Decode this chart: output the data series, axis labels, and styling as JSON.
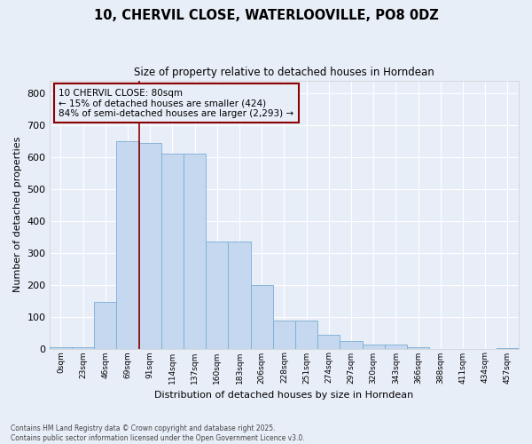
{
  "title": "10, CHERVIL CLOSE, WATERLOOVILLE, PO8 0DZ",
  "subtitle": "Size of property relative to detached houses in Horndean",
  "xlabel": "Distribution of detached houses by size in Horndean",
  "ylabel": "Number of detached properties",
  "footer_line1": "Contains HM Land Registry data © Crown copyright and database right 2025.",
  "footer_line2": "Contains public sector information licensed under the Open Government Licence v3.0.",
  "bin_labels": [
    "0sqm",
    "23sqm",
    "46sqm",
    "69sqm",
    "91sqm",
    "114sqm",
    "137sqm",
    "160sqm",
    "183sqm",
    "206sqm",
    "228sqm",
    "251sqm",
    "274sqm",
    "297sqm",
    "320sqm",
    "343sqm",
    "366sqm",
    "388sqm",
    "411sqm",
    "434sqm",
    "457sqm"
  ],
  "bar_values": [
    4,
    4,
    145,
    650,
    645,
    610,
    610,
    335,
    335,
    200,
    88,
    88,
    42,
    25,
    12,
    12,
    5,
    0,
    0,
    0,
    2
  ],
  "bar_color": "#c5d8f0",
  "bar_edge_color": "#7aadd4",
  "background_color": "#e8eef8",
  "grid_color": "#ffffff",
  "vline_x_idx": 3,
  "vline_color": "#8b0000",
  "annotation_text": "10 CHERVIL CLOSE: 80sqm\n← 15% of detached houses are smaller (424)\n84% of semi-detached houses are larger (2,293) →",
  "annotation_box_color": "#8b0000",
  "annotation_box_fill": "#e8eef8",
  "ylim": [
    0,
    840
  ],
  "yticks": [
    0,
    100,
    200,
    300,
    400,
    500,
    600,
    700,
    800
  ]
}
